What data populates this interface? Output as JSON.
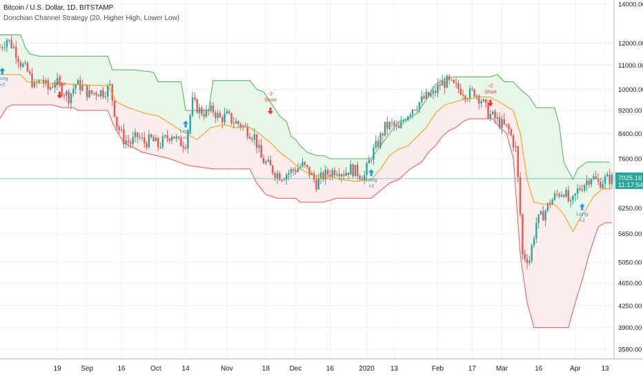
{
  "header": {
    "title": "Bitcoin / U.S. Dollar, 1D, BITSTAMP",
    "indicator": "Donchian Channel Strategy (20, Higher High, Lower Low)"
  },
  "price_axis": {
    "labels": [
      "14000.00",
      "12000.00",
      "11000.00",
      "10000.00",
      "9200.00",
      "8400.00",
      "7600.00",
      "6250.00",
      "5650.00",
      "5050.00",
      "4650.00",
      "4250.00",
      "3900.00",
      "3580.00"
    ],
    "values": [
      14000,
      12000,
      11000,
      10000,
      9200,
      8400,
      7600,
      6250,
      5650,
      5050,
      4650,
      4250,
      3900,
      3580
    ],
    "scale": "log",
    "range": [
      3400,
      14500
    ],
    "last_price": "7025.16",
    "countdown": "11:17:54",
    "last_price_color": "#26a69a"
  },
  "time_axis": {
    "labels": [
      {
        "day": 84,
        "text": "19"
      },
      {
        "day": 97,
        "text": "Sep"
      },
      {
        "day": 112,
        "text": "16"
      },
      {
        "day": 127,
        "text": "Oct"
      },
      {
        "day": 140,
        "text": "14"
      },
      {
        "day": 158,
        "text": "Nov"
      },
      {
        "day": 175,
        "text": "18"
      },
      {
        "day": 188,
        "text": "Dec"
      },
      {
        "day": 203,
        "text": "16"
      },
      {
        "day": 219,
        "text": "2020"
      },
      {
        "day": 231,
        "text": "13"
      },
      {
        "day": 250,
        "text": "Feb"
      },
      {
        "day": 265,
        "text": "17"
      },
      {
        "day": 278,
        "text": "Mar"
      },
      {
        "day": 294,
        "text": "16"
      },
      {
        "day": 310,
        "text": "Apr"
      },
      {
        "day": 323,
        "text": "13"
      }
    ]
  },
  "chart_data": {
    "type": "candlestick",
    "colors": {
      "up": "#26a69a",
      "down": "#ef5350",
      "upper_band": "#4caf50",
      "lower_band": "#ef5350",
      "basis": "#ff9800",
      "upper_fill": "#e8f5e9",
      "lower_fill": "#fdecec",
      "long_signal": "#2196f3",
      "short_signal": "#e53935"
    },
    "channel": {
      "upper": [
        [
          59,
          12400
        ],
        [
          68,
          12400
        ],
        [
          70,
          11800
        ],
        [
          72,
          11500
        ],
        [
          76,
          11400
        ],
        [
          106,
          11400
        ],
        [
          108,
          10800
        ],
        [
          117,
          10800
        ],
        [
          126,
          10700
        ],
        [
          128,
          10300
        ],
        [
          138,
          10300
        ],
        [
          140,
          9200
        ],
        [
          150,
          9200
        ],
        [
          152,
          10350
        ],
        [
          168,
          10350
        ],
        [
          171,
          10000
        ],
        [
          174,
          9900
        ],
        [
          177,
          9500
        ],
        [
          179,
          9250
        ],
        [
          181,
          9000
        ],
        [
          184,
          8800
        ],
        [
          186,
          8300
        ],
        [
          188,
          8200
        ],
        [
          190,
          8000
        ],
        [
          193,
          7800
        ],
        [
          197,
          7700
        ],
        [
          200,
          7700
        ],
        [
          203,
          7600
        ],
        [
          221,
          7600
        ],
        [
          225,
          8000
        ],
        [
          229,
          8400
        ],
        [
          233,
          8800
        ],
        [
          237,
          8900
        ],
        [
          241,
          9100
        ],
        [
          245,
          9600
        ],
        [
          249,
          10200
        ],
        [
          253,
          10400
        ],
        [
          257,
          10500
        ],
        [
          273,
          10500
        ],
        [
          276,
          10600
        ],
        [
          279,
          10300
        ],
        [
          283,
          10300
        ],
        [
          286,
          10000
        ],
        [
          290,
          9700
        ],
        [
          293,
          9300
        ],
        [
          301,
          9300
        ],
        [
          303,
          8700
        ],
        [
          305,
          7500
        ],
        [
          309,
          7000
        ],
        [
          311,
          7300
        ],
        [
          315,
          7500
        ],
        [
          325,
          7500
        ]
      ],
      "lower": [
        [
          59,
          8900
        ],
        [
          62,
          9300
        ],
        [
          64,
          9400
        ],
        [
          82,
          9400
        ],
        [
          86,
          9300
        ],
        [
          91,
          9300
        ],
        [
          93,
          9200
        ],
        [
          100,
          9200
        ],
        [
          106,
          9200
        ],
        [
          109,
          8600
        ],
        [
          113,
          8100
        ],
        [
          121,
          7800
        ],
        [
          133,
          7600
        ],
        [
          141,
          7400
        ],
        [
          152,
          7300
        ],
        [
          156,
          7300
        ],
        [
          159,
          7300
        ],
        [
          162,
          7300
        ],
        [
          168,
          7300
        ],
        [
          171,
          6900
        ],
        [
          175,
          6600
        ],
        [
          180,
          6500
        ],
        [
          188,
          6500
        ],
        [
          190,
          6400
        ],
        [
          200,
          6400
        ],
        [
          206,
          6500
        ],
        [
          221,
          6500
        ],
        [
          225,
          6700
        ],
        [
          229,
          6900
        ],
        [
          233,
          7000
        ],
        [
          238,
          7300
        ],
        [
          243,
          7500
        ],
        [
          246,
          7800
        ],
        [
          249,
          8000
        ],
        [
          252,
          8300
        ],
        [
          255,
          8500
        ],
        [
          258,
          8600
        ],
        [
          261,
          8800
        ],
        [
          264,
          8900
        ],
        [
          274,
          8900
        ],
        [
          277,
          8600
        ],
        [
          280,
          8400
        ],
        [
          283,
          7600
        ],
        [
          286,
          5200
        ],
        [
          289,
          4300
        ],
        [
          292,
          3900
        ],
        [
          301,
          3900
        ],
        [
          307,
          3900
        ],
        [
          310,
          4300
        ],
        [
          313,
          4700
        ],
        [
          316,
          5200
        ],
        [
          318,
          5500
        ],
        [
          320,
          5800
        ],
        [
          323,
          5900
        ],
        [
          326,
          5900
        ]
      ],
      "basis": [
        [
          59,
          10600
        ],
        [
          68,
          10600
        ],
        [
          71,
          10300
        ],
        [
          80,
          10250
        ],
        [
          91,
          10200
        ],
        [
          101,
          10150
        ],
        [
          106,
          10150
        ],
        [
          110,
          9500
        ],
        [
          115,
          9300
        ],
        [
          122,
          9100
        ],
        [
          128,
          9000
        ],
        [
          134,
          8700
        ],
        [
          140,
          8400
        ],
        [
          145,
          8200
        ],
        [
          151,
          8600
        ],
        [
          157,
          8700
        ],
        [
          161,
          8600
        ],
        [
          168,
          8600
        ],
        [
          172,
          8400
        ],
        [
          177,
          8100
        ],
        [
          181,
          7800
        ],
        [
          185,
          7600
        ],
        [
          190,
          7300
        ],
        [
          196,
          7100
        ],
        [
          202,
          7100
        ],
        [
          208,
          7000
        ],
        [
          214,
          6950
        ],
        [
          221,
          7000
        ],
        [
          225,
          7300
        ],
        [
          229,
          7700
        ],
        [
          233,
          7900
        ],
        [
          237,
          8000
        ],
        [
          241,
          8300
        ],
        [
          245,
          8600
        ],
        [
          249,
          9100
        ],
        [
          253,
          9400
        ],
        [
          257,
          9500
        ],
        [
          261,
          9600
        ],
        [
          265,
          9650
        ],
        [
          269,
          9700
        ],
        [
          273,
          9700
        ],
        [
          276,
          9550
        ],
        [
          279,
          9400
        ],
        [
          283,
          9200
        ],
        [
          286,
          8400
        ],
        [
          289,
          7000
        ],
        [
          292,
          6400
        ],
        [
          296,
          6350
        ],
        [
          301,
          6350
        ],
        [
          305,
          6100
        ],
        [
          309,
          5700
        ],
        [
          312,
          6000
        ],
        [
          315,
          6250
        ],
        [
          318,
          6550
        ],
        [
          322,
          6750
        ],
        [
          325,
          6750
        ]
      ]
    },
    "signals": [
      {
        "day": 60,
        "price": 10600,
        "direction": "up",
        "lines": [
          "Long",
          "+2"
        ]
      },
      {
        "day": 85,
        "price": 9900,
        "direction": "down",
        "lines": [
          "-2",
          "Short"
        ]
      },
      {
        "day": 140,
        "price": 8600,
        "direction": "up",
        "lines": [
          "Long",
          "+2"
        ]
      },
      {
        "day": 177,
        "price": 9300,
        "direction": "down",
        "lines": [
          "-2",
          "Short"
        ]
      },
      {
        "day": 221,
        "price": 7100,
        "direction": "up",
        "lines": [
          "Long",
          "+2"
        ]
      },
      {
        "day": 273,
        "price": 9600,
        "direction": "down",
        "lines": [
          "-2",
          "Short"
        ]
      },
      {
        "day": 313,
        "price": 6200,
        "direction": "up",
        "lines": [
          "Long",
          "+2"
        ]
      }
    ],
    "candles_path": [
      [
        59,
        11800
      ],
      [
        62,
        12200
      ],
      [
        65,
        11800
      ],
      [
        68,
        11100
      ],
      [
        71,
        10700
      ],
      [
        74,
        10100
      ],
      [
        77,
        10400
      ],
      [
        80,
        10000
      ],
      [
        83,
        10300
      ],
      [
        86,
        10000
      ],
      [
        89,
        9700
      ],
      [
        92,
        10200
      ],
      [
        95,
        10100
      ],
      [
        98,
        9800
      ],
      [
        101,
        9900
      ],
      [
        104,
        9900
      ],
      [
        107,
        10100
      ],
      [
        110,
        8700
      ],
      [
        113,
        8200
      ],
      [
        116,
        8100
      ],
      [
        119,
        8300
      ],
      [
        122,
        8100
      ],
      [
        125,
        8200
      ],
      [
        128,
        8000
      ],
      [
        131,
        8200
      ],
      [
        134,
        8400
      ],
      [
        137,
        8100
      ],
      [
        140,
        8100
      ],
      [
        143,
        9500
      ],
      [
        146,
        9200
      ],
      [
        149,
        9100
      ],
      [
        152,
        9200
      ],
      [
        155,
        8900
      ],
      [
        158,
        9000
      ],
      [
        161,
        8800
      ],
      [
        164,
        8700
      ],
      [
        167,
        8500
      ],
      [
        170,
        8300
      ],
      [
        173,
        7600
      ],
      [
        176,
        7400
      ],
      [
        179,
        7200
      ],
      [
        182,
        7100
      ],
      [
        185,
        7200
      ],
      [
        188,
        7300
      ],
      [
        191,
        7400
      ],
      [
        194,
        7200
      ],
      [
        197,
        6900
      ],
      [
        200,
        7100
      ],
      [
        203,
        7200
      ],
      [
        206,
        7300
      ],
      [
        209,
        7200
      ],
      [
        212,
        7300
      ],
      [
        215,
        7200
      ],
      [
        218,
        7100
      ],
      [
        221,
        7700
      ],
      [
        224,
        8100
      ],
      [
        227,
        8600
      ],
      [
        230,
        8700
      ],
      [
        233,
        8500
      ],
      [
        236,
        9000
      ],
      [
        239,
        9300
      ],
      [
        242,
        9500
      ],
      [
        245,
        9700
      ],
      [
        248,
        9800
      ],
      [
        251,
        10200
      ],
      [
        254,
        10300
      ],
      [
        257,
        10100
      ],
      [
        260,
        10000
      ],
      [
        263,
        9800
      ],
      [
        266,
        9900
      ],
      [
        269,
        9600
      ],
      [
        272,
        9100
      ],
      [
        275,
        8900
      ],
      [
        278,
        8700
      ],
      [
        281,
        8500
      ],
      [
        284,
        7900
      ],
      [
        287,
        5200
      ],
      [
        290,
        5100
      ],
      [
        293,
        5900
      ],
      [
        296,
        6100
      ],
      [
        299,
        6400
      ],
      [
        302,
        6600
      ],
      [
        305,
        6700
      ],
      [
        308,
        6300
      ],
      [
        311,
        6700
      ],
      [
        314,
        6900
      ],
      [
        317,
        7100
      ],
      [
        320,
        6900
      ],
      [
        323,
        7000
      ],
      [
        326,
        7025
      ]
    ],
    "x_range": [
      59,
      326
    ]
  }
}
